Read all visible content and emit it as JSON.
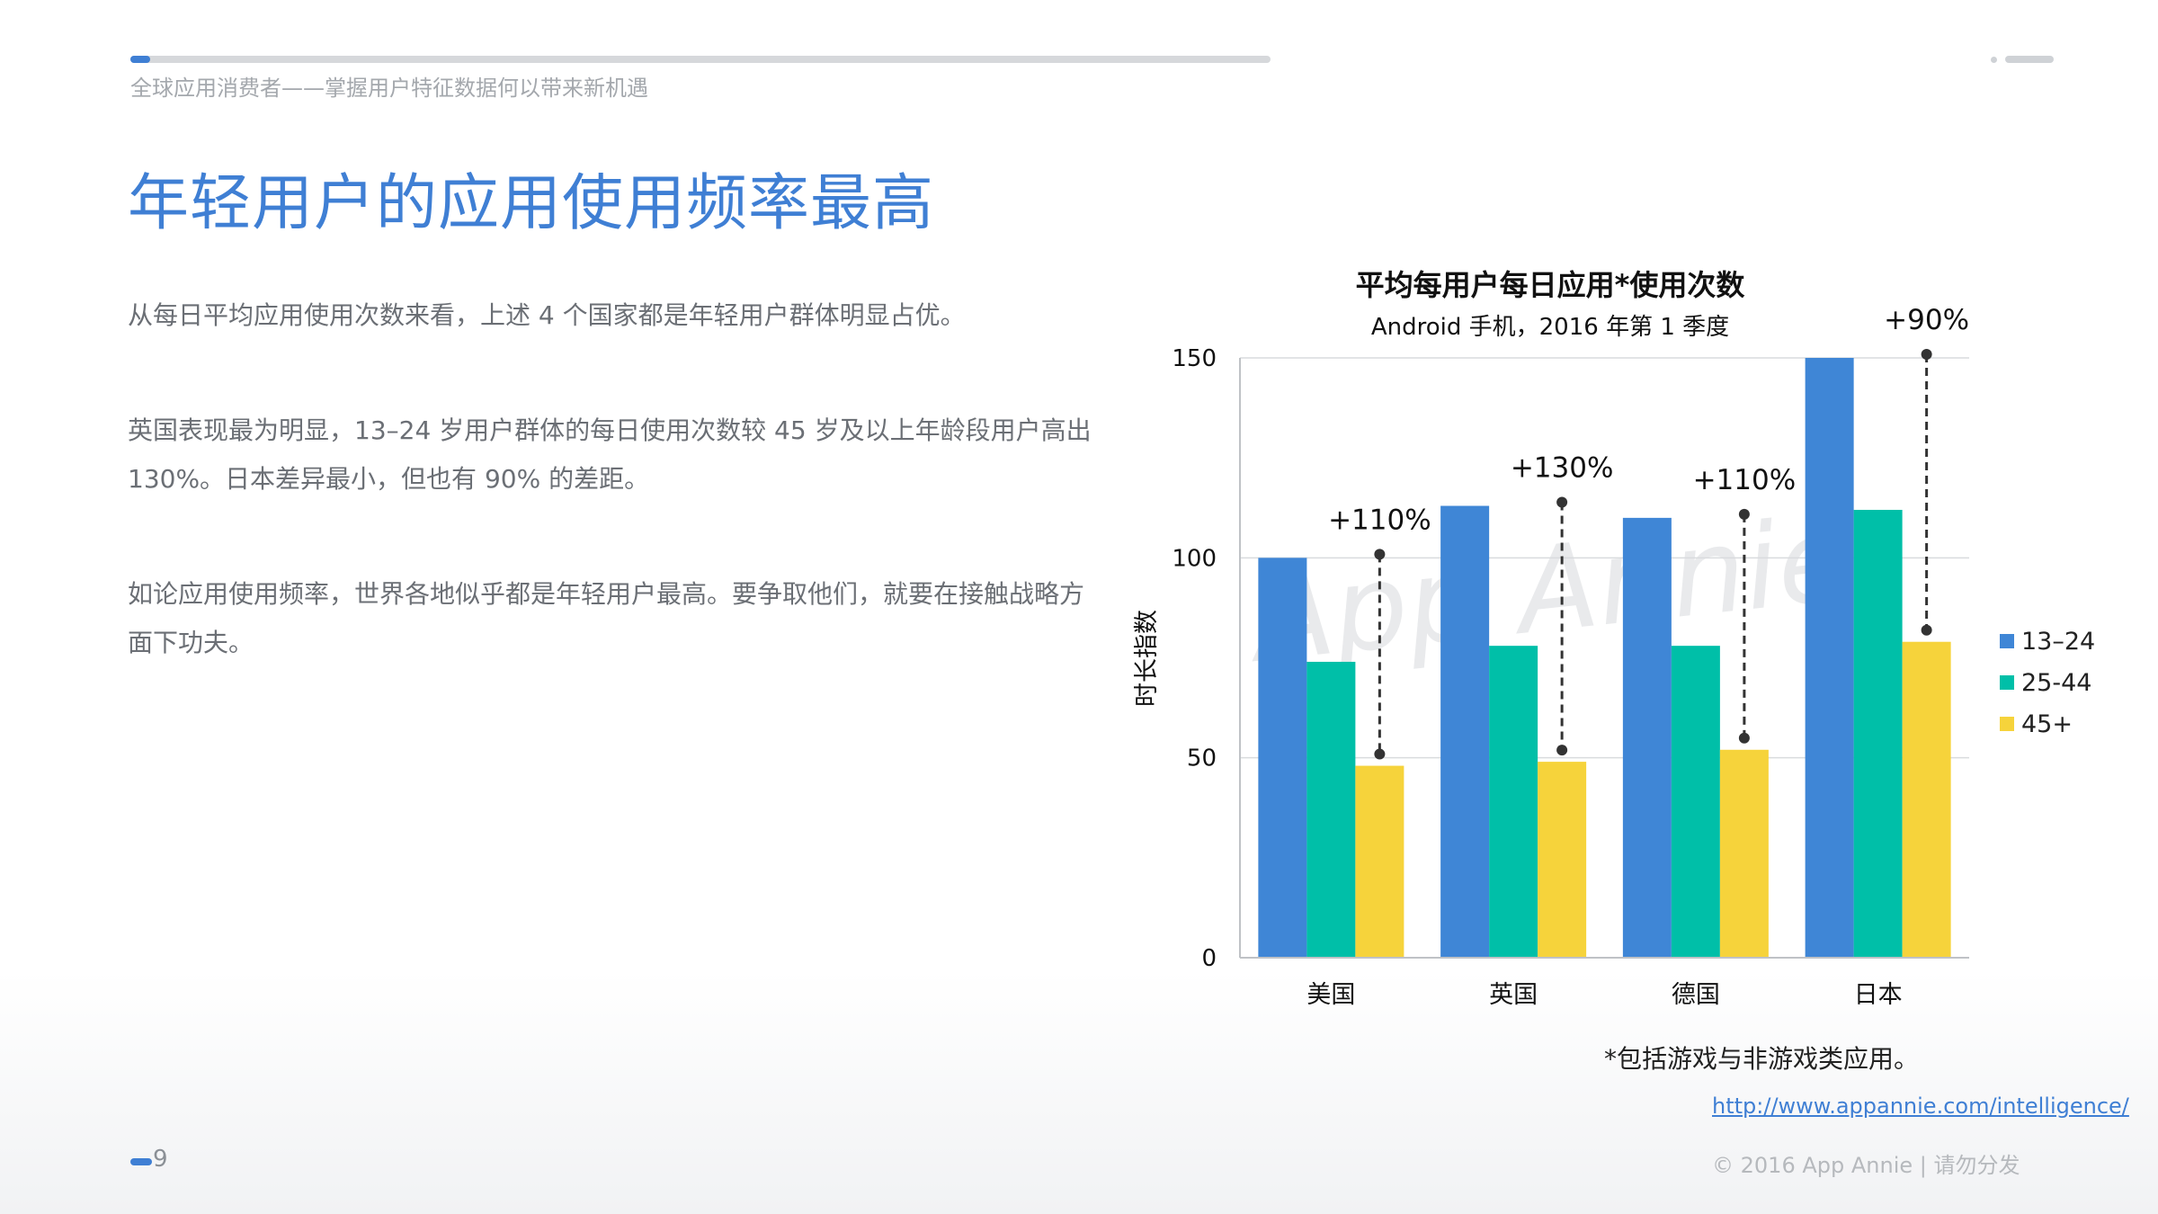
{
  "header": {
    "doc_title": "全球应用消费者——掌握用户特征数据何以带来新机遇"
  },
  "main": {
    "title": "年轻用户的应用使用频率最高",
    "paragraphs": [
      "从每日平均应用使用次数来看，上述 4 个国家都是年轻用户群体明显占优。",
      "英国表现最为明显，13–24 岁用户群体的每日使用次数较 45 岁及以上年龄段用户高出 130%。日本差异最小，但也有 90% 的差距。",
      "如论应用使用频率，世界各地似乎都是年轻用户最高。要争取他们，就要在接触战略方面下功夫。"
    ]
  },
  "chart_data": {
    "type": "bar",
    "title": "平均每用户每日应用*使用次数",
    "subtitle": "Android 手机，2016 年第 1 季度",
    "ylabel": "时长指数",
    "xlabel": "",
    "ylim": [
      0,
      150
    ],
    "yticks": [
      "0",
      "50",
      "100",
      "150"
    ],
    "categories": [
      "美国",
      "英国",
      "德国",
      "日本"
    ],
    "series": [
      {
        "name": "13–24",
        "color": "#3f86d6",
        "values": [
          100,
          113,
          110,
          150
        ]
      },
      {
        "name": "25-44",
        "color": "#00bfa8",
        "values": [
          74,
          78,
          78,
          112
        ]
      },
      {
        "name": "45+",
        "color": "#f6d33b",
        "values": [
          48,
          49,
          52,
          79
        ]
      }
    ],
    "annotations": [
      "+110%",
      "+130%",
      "+110%",
      "+90%"
    ],
    "grid": true,
    "legend": "right",
    "watermark": "App Annie"
  },
  "footer": {
    "footnote": "*包括游戏与非游戏类应用。",
    "url": "http://www.appannie.com/intelligence/",
    "page_number": "9",
    "copyright": "© 2016 App Annie | 请勿分发"
  }
}
